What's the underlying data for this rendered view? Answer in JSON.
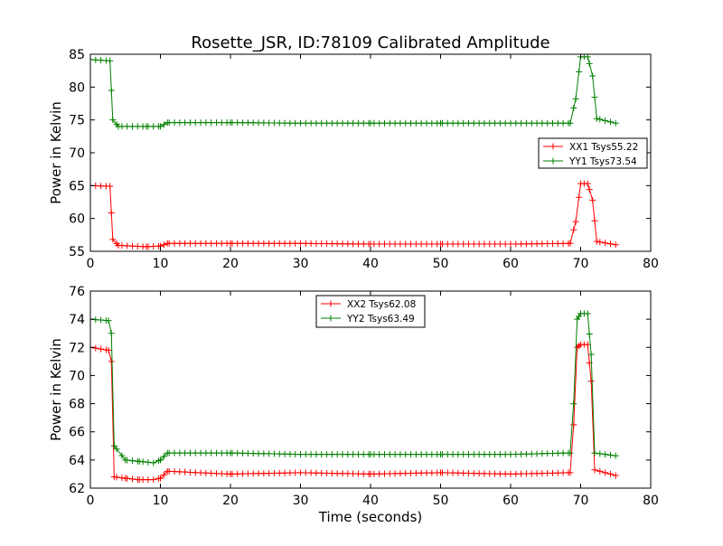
{
  "chart_data": [
    {
      "type": "line",
      "title": "Rosette_JSR, ID:78109 Calibrated Amplitude",
      "xlabel": "",
      "ylabel": "Power in Kelvin",
      "xlim": [
        0,
        80
      ],
      "ylim": [
        55,
        85
      ],
      "xticks": [
        "0",
        "10",
        "20",
        "30",
        "40",
        "50",
        "60",
        "70",
        "80"
      ],
      "yticks": [
        "55",
        "60",
        "65",
        "70",
        "75",
        "80",
        "85"
      ],
      "legend_position": "center-right",
      "grid": false,
      "marker": "plus",
      "series": [
        {
          "name": "XX1 Tsys55.22",
          "color": "#ff0000",
          "x": [
            0,
            2.8,
            3.2,
            4,
            6,
            8,
            10,
            11,
            20,
            30,
            40,
            50,
            60,
            68.5,
            69.3,
            70,
            71,
            71.7,
            72.3,
            75
          ],
          "y": [
            65.0,
            64.9,
            56.8,
            55.9,
            55.8,
            55.7,
            55.8,
            56.2,
            56.2,
            56.2,
            56.1,
            56.1,
            56.1,
            56.2,
            59.5,
            65.3,
            65.3,
            62.8,
            56.5,
            56.0
          ]
        },
        {
          "name": "YY1 Tsys73.54",
          "color": "#008000",
          "x": [
            0,
            2.8,
            3.2,
            4,
            6,
            8,
            10,
            11,
            20,
            30,
            40,
            50,
            60,
            68.5,
            69.3,
            70,
            71,
            71.7,
            72.3,
            75
          ],
          "y": [
            84.2,
            84.0,
            75.0,
            74.0,
            74.0,
            74.0,
            74.0,
            74.6,
            74.6,
            74.5,
            74.5,
            74.5,
            74.5,
            74.5,
            78.2,
            84.6,
            84.6,
            81.7,
            75.2,
            74.5
          ]
        }
      ]
    },
    {
      "type": "line",
      "title": "",
      "xlabel": "Time (seconds)",
      "ylabel": "Power in Kelvin",
      "xlim": [
        0,
        80
      ],
      "ylim": [
        62,
        76
      ],
      "xticks": [
        "0",
        "10",
        "20",
        "30",
        "40",
        "50",
        "60",
        "70",
        "80"
      ],
      "yticks": [
        "62",
        "64",
        "66",
        "68",
        "70",
        "72",
        "74",
        "76"
      ],
      "legend_position": "top-center",
      "grid": false,
      "marker": "plus",
      "series": [
        {
          "name": "XX2 Tsys62.08",
          "color": "#ff0000",
          "x": [
            0,
            2.6,
            3.0,
            3.4,
            5,
            7,
            9,
            10,
            11,
            20,
            30,
            40,
            50,
            60,
            68.5,
            69.0,
            69.5,
            70,
            71,
            71.5,
            72.0,
            75
          ],
          "y": [
            72.0,
            71.8,
            71.0,
            62.8,
            62.7,
            62.6,
            62.6,
            62.7,
            63.2,
            63.0,
            63.1,
            63.0,
            63.1,
            63.0,
            63.1,
            66.5,
            72.0,
            72.2,
            72.2,
            69.6,
            63.3,
            62.9
          ]
        },
        {
          "name": "YY2 Tsys63.49",
          "color": "#008000",
          "x": [
            0,
            2.6,
            3.0,
            3.4,
            5,
            7,
            9,
            10,
            11,
            20,
            30,
            40,
            50,
            60,
            68.5,
            69.0,
            69.5,
            70,
            71,
            71.5,
            72.0,
            75
          ],
          "y": [
            74.0,
            73.9,
            73.0,
            65.0,
            64.0,
            63.9,
            63.8,
            64.0,
            64.5,
            64.5,
            64.4,
            64.4,
            64.4,
            64.4,
            64.5,
            68.0,
            74.0,
            74.4,
            74.4,
            71.5,
            64.5,
            64.3
          ]
        }
      ]
    }
  ]
}
